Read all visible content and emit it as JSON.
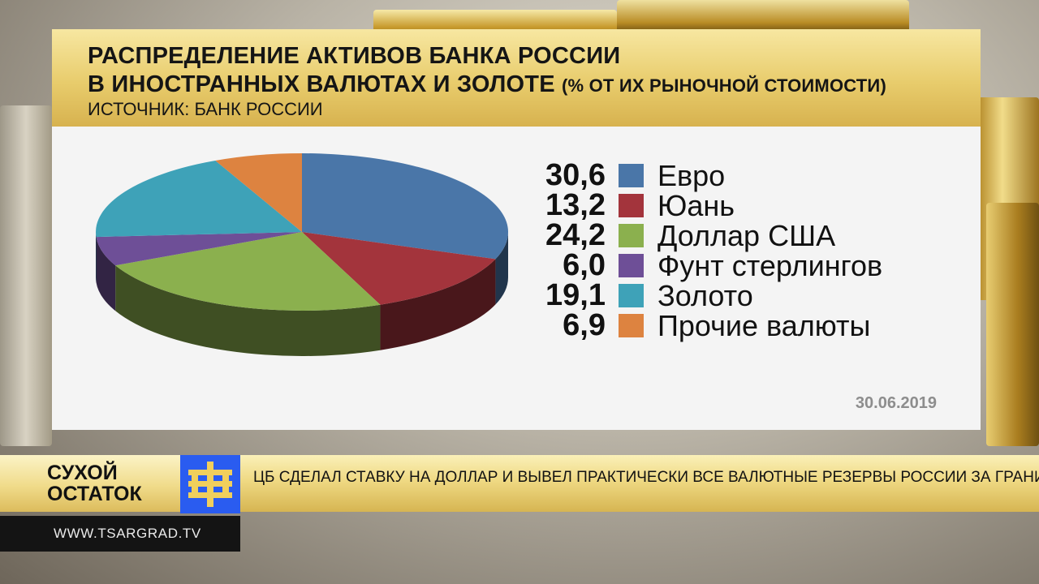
{
  "header": {
    "title_line1": "РАСПРЕДЕЛЕНИЕ АКТИВОВ БАНКА РОССИИ",
    "title_line2": "В ИНОСТРАННЫХ ВАЛЮТАХ И ЗОЛОТЕ",
    "title_sub": "(% ОТ ИХ РЫНОЧНОЙ СТОИМОСТИ)",
    "source": "ИСТОЧНИК: БАНК РОССИИ"
  },
  "date": "30.06.2019",
  "chart_data": {
    "type": "pie",
    "title": "РАСПРЕДЕЛЕНИЕ АКТИВОВ БАНКА РОССИИ В ИНОСТРАННЫХ ВАЛЮТАХ И ЗОЛОТЕ (% ОТ ИХ РЫНОЧНОЙ СТОИМОСТИ)",
    "legend_position": "right",
    "slices": [
      {
        "label": "Евро",
        "value": 30.6,
        "value_label": "30,6",
        "color": "#4a76a8"
      },
      {
        "label": "Юань",
        "value": 13.2,
        "value_label": "13,2",
        "color": "#a3343c"
      },
      {
        "label": "Доллар США",
        "value": 24.2,
        "value_label": "24,2",
        "color": "#8bb04e"
      },
      {
        "label": "Фунт стерлингов",
        "value": 6.0,
        "value_label": "6,0",
        "color": "#6e4f97"
      },
      {
        "label": "Золото",
        "value": 19.1,
        "value_label": "19,1",
        "color": "#3ea2b8"
      },
      {
        "label": "Прочие валюты",
        "value": 6.9,
        "value_label": "6,9",
        "color": "#dd8340"
      }
    ]
  },
  "ticker": {
    "brand_line1": "СУХОЙ",
    "brand_line2": "ОСТАТОК",
    "headline": "ЦБ СДЕЛАЛ СТАВКУ НА ДОЛЛАР И ВЫВЕЛ ПРАКТИЧЕСКИ ВСЕ ВАЛЮТНЫЕ РЕЗЕРВЫ РОССИИ ЗА ГРАНИЦУ",
    "url": "WWW.TSARGRAD.TV",
    "logo_color": "#2a5cf0",
    "logo_cross_color": "#f0cf5c"
  }
}
